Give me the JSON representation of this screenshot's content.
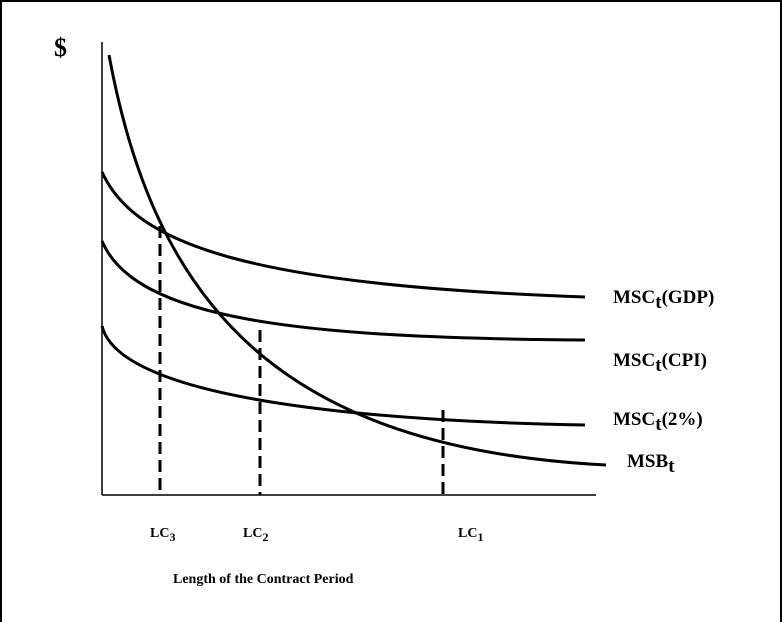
{
  "y_axis_label": "$",
  "x_axis_label": "Length of the Contract Period",
  "curves": [
    {
      "id": "msc-gdp",
      "base": "MSC",
      "sub": "t",
      "suffix": "(GDP)"
    },
    {
      "id": "msc-cpi",
      "base": "MSC",
      "sub": "t",
      "suffix": "(CPI)"
    },
    {
      "id": "msc-2pct",
      "base": "MSC",
      "sub": "t",
      "suffix": "(2%)"
    },
    {
      "id": "msb",
      "base": "MSB",
      "sub": "t",
      "suffix": ""
    }
  ],
  "lc_markers": [
    {
      "id": "lc3",
      "base": "LC",
      "sub": "3"
    },
    {
      "id": "lc2",
      "base": "LC",
      "sub": "2"
    },
    {
      "id": "lc1",
      "base": "LC",
      "sub": "1"
    }
  ],
  "colors": {
    "line": "#000000",
    "background": "#ffffff"
  }
}
